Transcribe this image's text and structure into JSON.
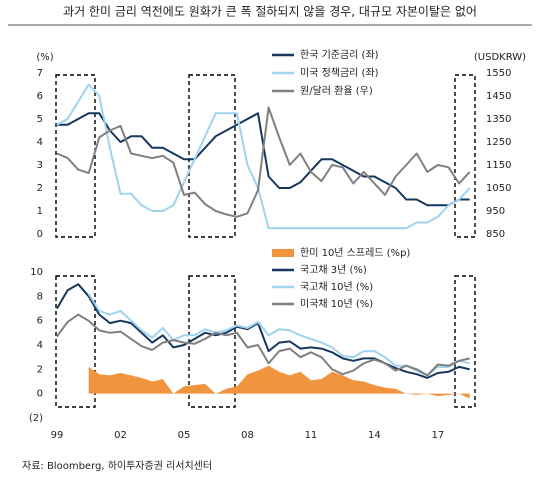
{
  "title": "과거 한미 금리 역전에도 원화가 큰 폭 절하되지 않을 경우, 대규모 자본이탈은 없어",
  "source": "자료: Bloomberg, 하이투자증권 리서치센터",
  "chart_data": [
    {
      "type": "line",
      "ylabel": "(%)",
      "y2label": "(USDKRW)",
      "x": [
        1999.0,
        1999.5,
        2000.0,
        2000.5,
        2001.0,
        2001.5,
        2002.0,
        2002.5,
        2003.0,
        2003.5,
        2004.0,
        2004.5,
        2005.0,
        2005.5,
        2006.0,
        2006.5,
        2007.0,
        2007.5,
        2008.0,
        2008.5,
        2009.0,
        2009.5,
        2010.0,
        2010.5,
        2011.0,
        2011.5,
        2012.0,
        2012.5,
        2013.0,
        2013.5,
        2014.0,
        2014.5,
        2015.0,
        2015.5,
        2016.0,
        2016.5,
        2017.0,
        2017.5,
        2018.0,
        2018.5
      ],
      "xlim": [
        1999,
        2018.8
      ],
      "ylim": [
        0,
        7
      ],
      "yticks": [
        0,
        1,
        2,
        3,
        4,
        5,
        6,
        7
      ],
      "y2lim": [
        850,
        1550
      ],
      "y2ticks": [
        850,
        950,
        1050,
        1150,
        1250,
        1350,
        1450,
        1550
      ],
      "series": [
        {
          "name": "한국 기준금리 (좌)",
          "color": "#17375e",
          "values": [
            4.75,
            4.75,
            5.0,
            5.25,
            5.25,
            4.5,
            4.0,
            4.25,
            4.25,
            3.75,
            3.75,
            3.5,
            3.25,
            3.25,
            3.75,
            4.25,
            4.5,
            4.75,
            5.0,
            5.25,
            2.5,
            2.0,
            2.0,
            2.25,
            2.75,
            3.25,
            3.25,
            3.0,
            2.75,
            2.5,
            2.5,
            2.25,
            2.0,
            1.5,
            1.5,
            1.25,
            1.25,
            1.25,
            1.5,
            1.5
          ]
        },
        {
          "name": "미국 정책금리 (좌)",
          "color": "#9fd3ee",
          "values": [
            4.75,
            5.0,
            5.75,
            6.5,
            6.0,
            3.75,
            1.75,
            1.75,
            1.25,
            1.0,
            1.0,
            1.25,
            2.25,
            3.25,
            4.25,
            5.25,
            5.25,
            5.25,
            3.0,
            2.0,
            0.25,
            0.25,
            0.25,
            0.25,
            0.25,
            0.25,
            0.25,
            0.25,
            0.25,
            0.25,
            0.25,
            0.25,
            0.25,
            0.25,
            0.5,
            0.5,
            0.75,
            1.25,
            1.5,
            2.0
          ]
        },
        {
          "name": "원/달러 환율 (우)",
          "color": "#808080",
          "axis": "y2",
          "values": [
            1200,
            1180,
            1130,
            1115,
            1270,
            1300,
            1320,
            1200,
            1190,
            1180,
            1190,
            1160,
            1020,
            1030,
            980,
            950,
            935,
            925,
            940,
            1040,
            1400,
            1270,
            1150,
            1200,
            1120,
            1080,
            1150,
            1140,
            1070,
            1120,
            1070,
            1020,
            1100,
            1150,
            1200,
            1120,
            1150,
            1140,
            1070,
            1120
          ]
        }
      ]
    },
    {
      "type": "line",
      "x": [
        1999.0,
        1999.5,
        2000.0,
        2000.5,
        2001.0,
        2001.5,
        2002.0,
        2002.5,
        2003.0,
        2003.5,
        2004.0,
        2004.5,
        2005.0,
        2005.5,
        2006.0,
        2006.5,
        2007.0,
        2007.5,
        2008.0,
        2008.5,
        2009.0,
        2009.5,
        2010.0,
        2010.5,
        2011.0,
        2011.5,
        2012.0,
        2012.5,
        2013.0,
        2013.5,
        2014.0,
        2014.5,
        2015.0,
        2015.5,
        2016.0,
        2016.5,
        2017.0,
        2017.5,
        2018.0,
        2018.5
      ],
      "xlim": [
        1999,
        2018.8
      ],
      "xticks": [
        {
          "value": 1999,
          "label": "99"
        },
        {
          "value": 2002,
          "label": "02"
        },
        {
          "value": 2005,
          "label": "05"
        },
        {
          "value": 2008,
          "label": "08"
        },
        {
          "value": 2011,
          "label": "11"
        },
        {
          "value": 2014,
          "label": "14"
        },
        {
          "value": 2017,
          "label": "17"
        }
      ],
      "ylim": [
        -2,
        10
      ],
      "yticks": [
        {
          "value": -2,
          "label": "(2)"
        },
        0,
        2,
        4,
        6,
        8,
        10
      ],
      "series": [
        {
          "name": "한미 10년 스프레드 (%p)",
          "type": "area",
          "color": "#f0943e",
          "values": [
            null,
            null,
            null,
            2.2,
            1.6,
            1.5,
            1.7,
            1.5,
            1.3,
            1.0,
            1.2,
            0.0,
            0.6,
            0.7,
            0.8,
            0.0,
            0.4,
            0.6,
            1.6,
            1.9,
            2.3,
            1.8,
            1.5,
            1.8,
            1.1,
            1.2,
            1.8,
            1.5,
            1.1,
            1.0,
            0.7,
            0.5,
            0.4,
            0.0,
            -0.1,
            0.0,
            -0.2,
            -0.1,
            0.0,
            -0.4
          ]
        },
        {
          "name": "국고채 3년 (%)",
          "color": "#17375e",
          "values": [
            7.0,
            8.5,
            9.0,
            8.0,
            6.5,
            5.8,
            6.0,
            5.8,
            5.0,
            4.2,
            4.8,
            3.8,
            4.0,
            4.5,
            5.0,
            4.8,
            5.0,
            5.5,
            5.3,
            5.8,
            3.5,
            4.2,
            4.3,
            3.7,
            3.8,
            3.7,
            3.4,
            2.9,
            2.7,
            2.9,
            2.9,
            2.5,
            2.1,
            1.8,
            1.6,
            1.3,
            1.7,
            1.8,
            2.2,
            2.0
          ]
        },
        {
          "name": "국고채 10년 (%)",
          "color": "#9fd3ee",
          "values": [
            null,
            null,
            null,
            8.2,
            6.8,
            6.5,
            6.8,
            6.0,
            5.2,
            4.6,
            5.4,
            4.4,
            4.8,
            4.8,
            5.3,
            5.0,
            5.2,
            5.6,
            5.4,
            5.9,
            4.8,
            5.3,
            5.2,
            4.8,
            4.5,
            4.2,
            3.8,
            3.1,
            3.0,
            3.5,
            3.5,
            3.0,
            2.3,
            2.3,
            1.9,
            1.5,
            2.2,
            2.2,
            2.7,
            2.5
          ]
        },
        {
          "name": "미국채 10년 (%)",
          "color": "#808080",
          "values": [
            4.7,
            5.9,
            6.5,
            6.0,
            5.2,
            5.0,
            5.1,
            4.5,
            3.9,
            3.6,
            4.2,
            4.4,
            4.2,
            4.1,
            4.5,
            5.0,
            4.8,
            5.0,
            3.8,
            4.0,
            2.5,
            3.5,
            3.7,
            3.0,
            3.4,
            3.0,
            2.0,
            1.6,
            1.9,
            2.5,
            2.8,
            2.5,
            1.9,
            2.3,
            2.0,
            1.5,
            2.4,
            2.3,
            2.7,
            2.9
          ]
        }
      ]
    }
  ]
}
